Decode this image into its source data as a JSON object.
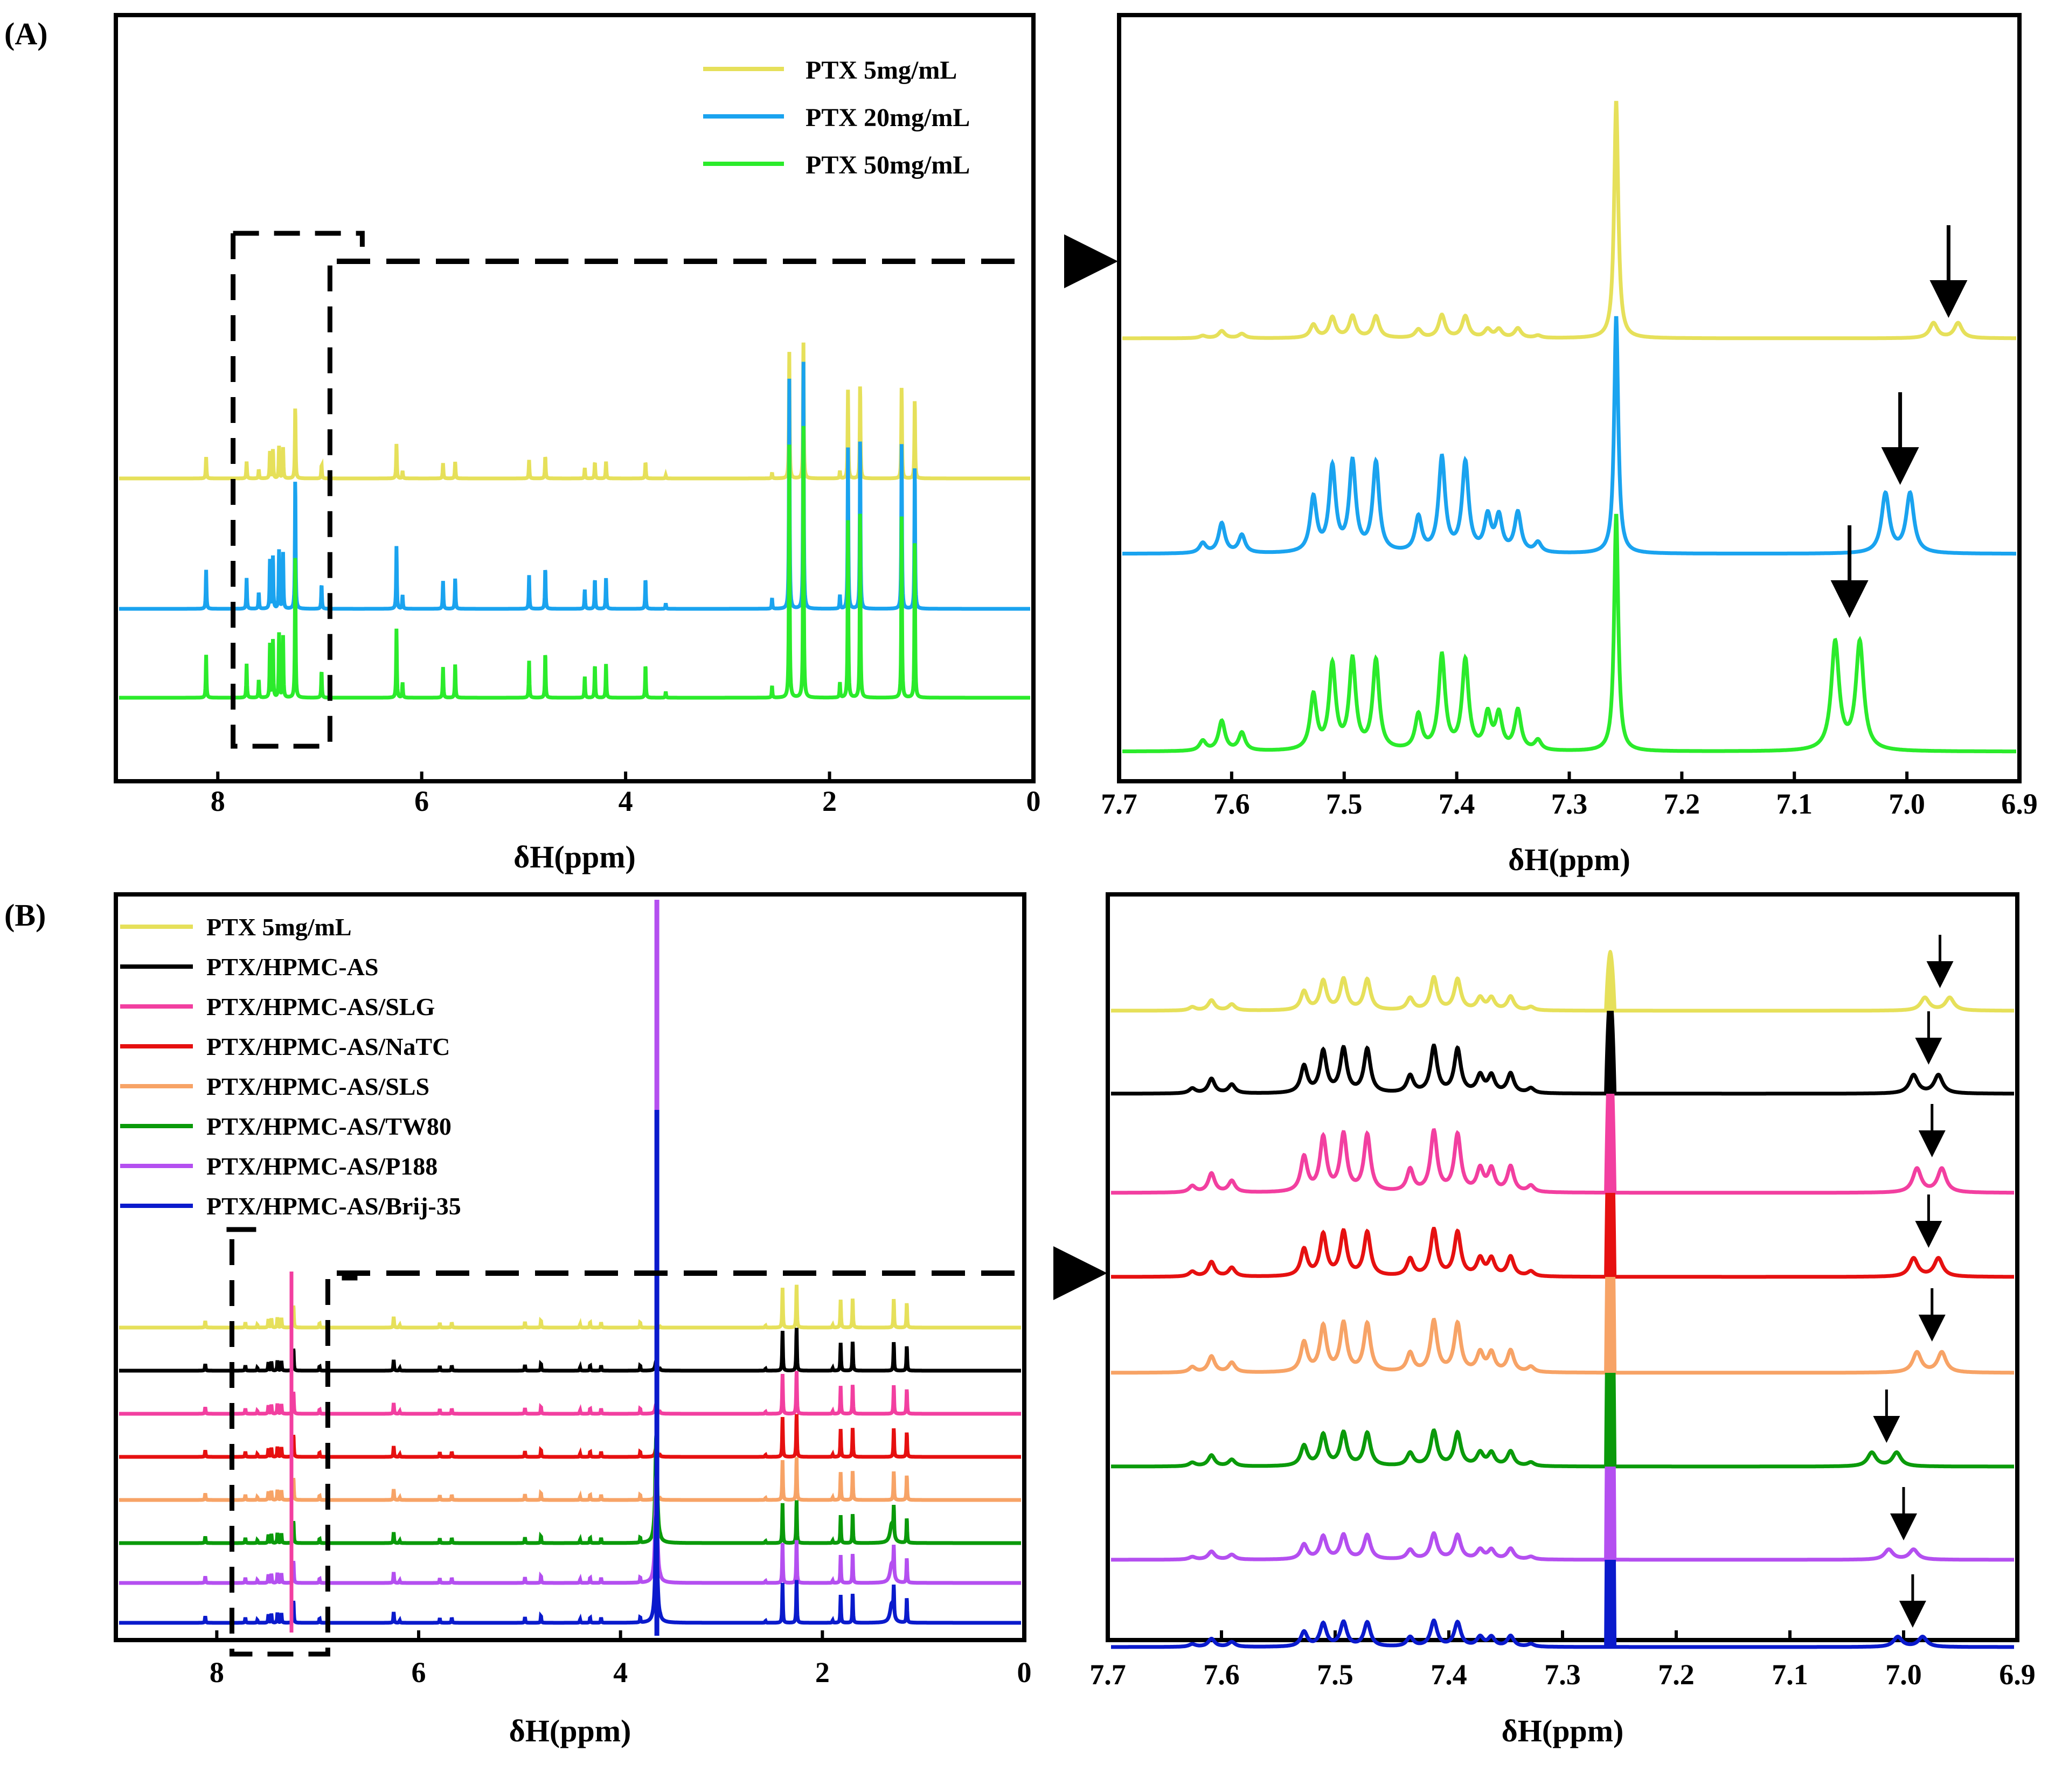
{
  "panel_labels": {
    "a": "(A)",
    "b": "(B)"
  },
  "colors": {
    "yellow": "#E6E05A",
    "sky": "#1AA3EF",
    "lime": "#2BEB2B",
    "black": "#000000",
    "pink": "#F23FA0",
    "red": "#E61010",
    "orange": "#F7A366",
    "green": "#0A9A0A",
    "violet": "#B44FF0",
    "navy": "#0A1ACC"
  },
  "chart_data": [
    {
      "id": "A-full",
      "type": "line",
      "title": "",
      "xlabel": "δH(ppm)",
      "ylabel": "",
      "xlim": [
        9,
        0
      ],
      "xticks": [
        8,
        6,
        4,
        2,
        0
      ],
      "legend": "top-right",
      "series": [
        {
          "name": "PTX 5mg/mL",
          "color": "yellow",
          "peak_scale": 0.55
        },
        {
          "name": "PTX 20mg/mL",
          "color": "sky",
          "peak_scale": 1.0
        },
        {
          "name": "PTX 50mg/mL",
          "color": "lime",
          "peak_scale": 1.1
        }
      ],
      "inset_box_ppm": [
        7.85,
        6.9
      ],
      "annotation": "dashed box 7.8–6.9 ppm enlarged in right panel"
    },
    {
      "id": "A-zoom",
      "type": "line",
      "title": "",
      "xlabel": "δH(ppm)",
      "ylabel": "",
      "xlim": [
        7.7,
        6.9
      ],
      "xticks": [
        7.7,
        7.6,
        7.5,
        7.4,
        7.3,
        7.2,
        7.1,
        7.0,
        6.9
      ],
      "xtick_labels": [
        "7.7",
        "7.6",
        "7.5",
        "7.4",
        "7.3",
        "7.2",
        "7.1",
        "7.0",
        "6.9"
      ],
      "series": [
        {
          "name": "PTX 5mg/mL",
          "color": "yellow",
          "marker_ppm": 6.963
        },
        {
          "name": "PTX 20mg/mL",
          "color": "sky",
          "marker_ppm": 7.006
        },
        {
          "name": "PTX 50mg/mL",
          "color": "lime",
          "marker_ppm": 7.051
        }
      ]
    },
    {
      "id": "B-full",
      "type": "line",
      "title": "",
      "xlabel": "δH(ppm)",
      "ylabel": "",
      "xlim": [
        9,
        0
      ],
      "xticks": [
        8,
        6,
        4,
        2,
        0
      ],
      "legend": "top-left",
      "series": [
        {
          "name": "PTX 5mg/mL",
          "color": "yellow"
        },
        {
          "name": "PTX/HPMC-AS",
          "color": "black"
        },
        {
          "name": "PTX/HPMC-AS/SLG",
          "color": "pink"
        },
        {
          "name": "PTX/HPMC-AS/NaTC",
          "color": "red"
        },
        {
          "name": "PTX/HPMC-AS/SLS",
          "color": "orange"
        },
        {
          "name": "PTX/HPMC-AS/TW80",
          "color": "green"
        },
        {
          "name": "PTX/HPMC-AS/P188",
          "color": "violet"
        },
        {
          "name": "PTX/HPMC-AS/Brij-35",
          "color": "navy"
        }
      ],
      "inset_box_ppm": [
        7.85,
        6.9
      ]
    },
    {
      "id": "B-zoom",
      "type": "line",
      "title": "",
      "xlabel": "δH(ppm)",
      "ylabel": "",
      "xlim": [
        7.7,
        6.9
      ],
      "xticks": [
        7.7,
        7.6,
        7.5,
        7.4,
        7.3,
        7.2,
        7.1,
        7.0,
        6.9
      ],
      "xtick_labels": [
        "7.7",
        "7.6",
        "7.5",
        "7.4",
        "7.3",
        "7.2",
        "7.1",
        "7.0",
        "6.9"
      ],
      "series": [
        {
          "name": "PTX 5mg/mL",
          "color": "yellow",
          "marker_ppm": 6.968
        },
        {
          "name": "PTX/HPMC-AS",
          "color": "black",
          "marker_ppm": 6.978
        },
        {
          "name": "PTX/HPMC-AS/SLG",
          "color": "pink",
          "marker_ppm": 6.975
        },
        {
          "name": "PTX/HPMC-AS/NaTC",
          "color": "red",
          "marker_ppm": 6.978
        },
        {
          "name": "PTX/HPMC-AS/SLS",
          "color": "orange",
          "marker_ppm": 6.975
        },
        {
          "name": "PTX/HPMC-AS/TW80",
          "color": "green",
          "marker_ppm": 7.015
        },
        {
          "name": "PTX/HPMC-AS/P188",
          "color": "violet",
          "marker_ppm": 7.0
        },
        {
          "name": "PTX/HPMC-AS/Brij-35",
          "color": "navy",
          "marker_ppm": 6.992
        }
      ]
    }
  ]
}
